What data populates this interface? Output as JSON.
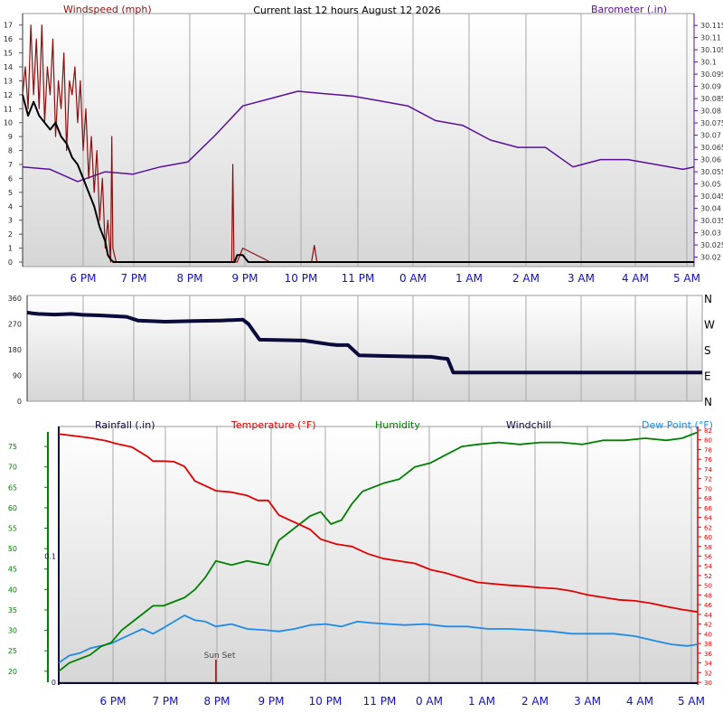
{
  "colors": {
    "windspeed": "#8b1010",
    "windspeed_avg": "#000000",
    "barometer": "#5a0f9c",
    "direction": "#0a0a3c",
    "temperature": "#e00000",
    "humidity": "#008000",
    "dew_point": "#1e8ce6",
    "windchill": "#0a0a3c",
    "rainfall": "#0a0a3c",
    "time_label": "#1010c0",
    "plot_bg_top": "#ffffff",
    "plot_bg_bottom": "#d6d6d6"
  },
  "chart_data": [
    {
      "id": "wind-barometer",
      "type": "line",
      "title": "Current last 12 hours August 12 2026",
      "x_ticks": [
        "6 PM",
        "7 PM",
        "8 PM",
        "9 PM",
        "10 PM",
        "11 PM",
        "0 AM",
        "1 AM",
        "2 AM",
        "3 AM",
        "4 AM",
        "5 AM"
      ],
      "x_range_hours": [
        17.0,
        29.2
      ],
      "left_axis": {
        "label": "Windspeed (mph)",
        "ylim": [
          0,
          17.5
        ],
        "ticks": [
          "0",
          "1",
          "2",
          "3",
          "4",
          "5",
          "6",
          "7",
          "8",
          "9",
          "10",
          "11",
          "12",
          "13",
          "14",
          "15",
          "16",
          "17"
        ]
      },
      "right_axis": {
        "label": "Barometer (.in)",
        "ylim": [
          30.018,
          30.118
        ],
        "ticks": [
          "30.02",
          "30.025",
          "30.03",
          "30.035",
          "30.04",
          "30.045",
          "30.05",
          "30.055",
          "30.06",
          "30.065",
          "30.07",
          "30.075",
          "30.08",
          "30.085",
          "30.09",
          "30.095",
          "30.1",
          "30.105",
          "30.11",
          "30.115"
        ]
      },
      "series": [
        {
          "name": "Windspeed (mph)",
          "axis": "left",
          "x": [
            17.0,
            17.05,
            17.1,
            17.15,
            17.2,
            17.25,
            17.3,
            17.35,
            17.4,
            17.45,
            17.5,
            17.55,
            17.6,
            17.65,
            17.7,
            17.75,
            17.8,
            17.85,
            17.9,
            17.95,
            18.0,
            18.05,
            18.1,
            18.15,
            18.2,
            18.25,
            18.3,
            18.35,
            18.4,
            18.45,
            18.5,
            18.55,
            18.6,
            18.62,
            18.64,
            18.7,
            18.8,
            18.9,
            19.0,
            19.5,
            20.0,
            20.5,
            20.8,
            20.82,
            20.84,
            20.9,
            21.0,
            21.5,
            22.0,
            22.25,
            22.3,
            22.35,
            22.5,
            23.0,
            24.0,
            25.0,
            26.0,
            27.0,
            28.0,
            29.2
          ],
          "values": [
            12,
            14,
            11,
            17,
            12,
            16,
            11,
            17,
            10,
            14,
            12,
            16,
            9,
            13,
            11,
            15,
            8,
            13,
            12,
            14,
            10,
            13,
            8,
            11,
            6,
            9,
            5,
            8,
            3,
            6,
            1,
            3,
            0,
            9,
            1,
            0,
            0,
            0,
            0,
            0,
            0,
            0,
            0,
            7,
            0,
            0,
            1,
            0,
            0,
            0,
            1.2,
            0,
            0,
            0,
            0,
            0,
            0,
            0,
            0,
            0
          ]
        },
        {
          "name": "Windspeed average",
          "axis": "left",
          "x": [
            17.0,
            17.1,
            17.2,
            17.3,
            17.4,
            17.5,
            17.6,
            17.7,
            17.8,
            17.9,
            18.0,
            18.1,
            18.2,
            18.3,
            18.4,
            18.5,
            18.55,
            18.6,
            18.65,
            18.7,
            19.0,
            20.0,
            20.85,
            20.9,
            21.0,
            21.1,
            22.0,
            29.2
          ],
          "values": [
            12,
            10.5,
            11.5,
            10.5,
            10,
            9.5,
            10,
            9,
            8.5,
            7.5,
            7,
            6,
            5,
            4,
            2.5,
            1.5,
            0.5,
            0.2,
            0,
            0,
            0,
            0,
            0,
            0.5,
            0.5,
            0,
            0,
            0
          ]
        },
        {
          "name": "Barometer (.in)",
          "axis": "right",
          "x": [
            17.0,
            17.5,
            18.0,
            18.5,
            19.0,
            19.5,
            20.0,
            20.5,
            21.0,
            21.5,
            22.0,
            22.5,
            23.0,
            23.5,
            24.0,
            24.5,
            25.0,
            25.5,
            26.0,
            26.5,
            27.0,
            27.5,
            28.0,
            28.5,
            29.0,
            29.2
          ],
          "values": [
            30.057,
            30.056,
            30.051,
            30.055,
            30.054,
            30.057,
            30.059,
            30.07,
            30.082,
            30.085,
            30.088,
            30.087,
            30.086,
            30.084,
            30.082,
            30.076,
            30.074,
            30.068,
            30.065,
            30.065,
            30.057,
            30.06,
            30.06,
            30.058,
            30.056,
            30.057
          ]
        }
      ]
    },
    {
      "id": "wind-direction",
      "type": "line",
      "x_range_hours": [
        17.0,
        29.2
      ],
      "left_axis": {
        "ylim": [
          0,
          360
        ],
        "ticks": [
          "0",
          "90",
          "180",
          "270",
          "360"
        ]
      },
      "right_axis": {
        "ticks": [
          "N",
          "E",
          "S",
          "W",
          "N"
        ]
      },
      "series": [
        {
          "name": "Wind direction",
          "x": [
            17.0,
            17.1,
            17.2,
            17.5,
            17.8,
            18.0,
            18.3,
            18.5,
            18.8,
            19.0,
            19.5,
            20.0,
            20.5,
            20.9,
            21.0,
            21.2,
            21.5,
            22.0,
            22.5,
            22.6,
            22.8,
            23.0,
            23.5,
            24.0,
            24.3,
            24.5,
            24.6,
            24.7,
            25.0,
            26.0,
            27.0,
            28.0,
            29.2
          ],
          "values": [
            310,
            307,
            305,
            303,
            305,
            302,
            300,
            298,
            295,
            282,
            278,
            280,
            282,
            285,
            270,
            215,
            214,
            212,
            198,
            196,
            196,
            160,
            158,
            156,
            155,
            150,
            148,
            100,
            100,
            100,
            100,
            100,
            100
          ]
        }
      ]
    },
    {
      "id": "rain-temp-humidity",
      "type": "line",
      "x_ticks": [
        "6 PM",
        "7 PM",
        "8 PM",
        "9 PM",
        "10 PM",
        "11 PM",
        "0 AM",
        "1 AM",
        "2 AM",
        "3 AM",
        "4 AM",
        "5 AM"
      ],
      "x_range_hours": [
        17.0,
        29.2
      ],
      "legend": [
        "Rainfall (.in)",
        "Temperature (°F)",
        "Humidity",
        "Windchill",
        "Dew Point (°F)"
      ],
      "annotation": "Sun Set",
      "annotation_x": 20.0,
      "humidity_axis": {
        "ylim": [
          17.3,
          79.0
        ],
        "ticks": [
          "20",
          "25",
          "30",
          "35",
          "40",
          "45",
          "50",
          "55",
          "60",
          "65",
          "70",
          "75"
        ]
      },
      "rainfall_axis": {
        "ylim": [
          0,
          0.2
        ],
        "ticks": [
          "0",
          "0.1"
        ]
      },
      "temperature_axis": {
        "ylim": [
          30,
          82
        ],
        "ticks": [
          "30",
          "32",
          "34",
          "36",
          "38",
          "40",
          "42",
          "44",
          "46",
          "48",
          "50",
          "52",
          "54",
          "56",
          "58",
          "60",
          "62",
          "64",
          "66",
          "68",
          "70",
          "72",
          "74",
          "76",
          "78",
          "80",
          "82"
        ]
      },
      "series": [
        {
          "name": "Temperature (°F)",
          "axis": "temperature",
          "x": [
            17.0,
            17.3,
            17.6,
            17.9,
            18.1,
            18.4,
            18.7,
            18.8,
            19.0,
            19.2,
            19.4,
            19.6,
            19.8,
            20.0,
            20.3,
            20.6,
            20.8,
            21.0,
            21.2,
            21.4,
            21.6,
            21.8,
            22.0,
            22.3,
            22.6,
            22.9,
            23.2,
            23.5,
            23.8,
            24.1,
            24.4,
            24.7,
            25.0,
            25.3,
            25.6,
            25.9,
            26.2,
            26.5,
            26.8,
            27.1,
            27.4,
            27.7,
            28.0,
            28.3,
            28.6,
            28.9,
            29.2
          ],
          "values": [
            81.2,
            80.8,
            80.4,
            79.8,
            79.2,
            78.5,
            76.5,
            75.6,
            75.6,
            75.5,
            74.5,
            71.5,
            70.5,
            69.5,
            69.2,
            68.5,
            67.5,
            67.5,
            64.5,
            63.5,
            62.5,
            61.5,
            59.5,
            58.5,
            58.0,
            56.5,
            55.5,
            55.0,
            54.5,
            53.2,
            52.5,
            51.5,
            50.6,
            50.3,
            50.0,
            49.8,
            49.5,
            49.3,
            48.8,
            48.0,
            47.5,
            47.0,
            46.8,
            46.3,
            45.6,
            45.0,
            44.5
          ]
        },
        {
          "name": "Humidity",
          "axis": "humidity",
          "x": [
            17.0,
            17.2,
            17.4,
            17.6,
            17.8,
            18.0,
            18.2,
            18.4,
            18.6,
            18.8,
            19.0,
            19.2,
            19.4,
            19.6,
            19.8,
            20.0,
            20.3,
            20.6,
            21.0,
            21.2,
            21.4,
            21.6,
            21.8,
            22.0,
            22.2,
            22.4,
            22.6,
            22.8,
            23.0,
            23.2,
            23.5,
            23.8,
            24.1,
            24.4,
            24.7,
            25.0,
            25.4,
            25.8,
            26.2,
            26.6,
            27.0,
            27.4,
            27.8,
            28.2,
            28.6,
            28.9,
            29.2
          ],
          "values": [
            20,
            22,
            23,
            24,
            26,
            27,
            30,
            32,
            34,
            36,
            36,
            37,
            38,
            40,
            43,
            47,
            46,
            47,
            46,
            52,
            54,
            56,
            58,
            59,
            56,
            57,
            61,
            64,
            65,
            66,
            67,
            70,
            71,
            73,
            75,
            75.5,
            76,
            75.5,
            76,
            76,
            75.5,
            76.5,
            76.5,
            77,
            76.5,
            77,
            78.5
          ]
        },
        {
          "name": "Dew Point (°F)",
          "axis": "temperature",
          "x": [
            17.0,
            17.2,
            17.4,
            17.6,
            17.8,
            18.0,
            18.2,
            18.4,
            18.6,
            18.8,
            19.0,
            19.2,
            19.4,
            19.6,
            19.8,
            20.0,
            20.3,
            20.6,
            20.9,
            21.2,
            21.5,
            21.8,
            22.1,
            22.4,
            22.7,
            23.0,
            23.3,
            23.6,
            24.0,
            24.4,
            24.8,
            25.2,
            25.6,
            26.0,
            26.4,
            26.8,
            27.2,
            27.6,
            28.0,
            28.4,
            28.7,
            29.0,
            29.2
          ],
          "values": [
            34,
            35.5,
            36,
            37,
            37.5,
            38,
            39,
            40,
            41,
            40,
            41.2,
            42.5,
            43.8,
            42.8,
            42.5,
            41.5,
            42.0,
            41.0,
            40.8,
            40.5,
            41.0,
            41.8,
            42.0,
            41.5,
            42.5,
            42.2,
            42.0,
            41.8,
            42.0,
            41.5,
            41.5,
            41.0,
            41.0,
            40.8,
            40.5,
            40.0,
            40.0,
            40.0,
            39.5,
            38.5,
            37.8,
            37.5,
            37.8
          ]
        },
        {
          "name": "Rainfall (.in)",
          "axis": "rainfall",
          "x": [
            17.0,
            29.2
          ],
          "values": [
            0,
            0
          ]
        }
      ]
    }
  ]
}
